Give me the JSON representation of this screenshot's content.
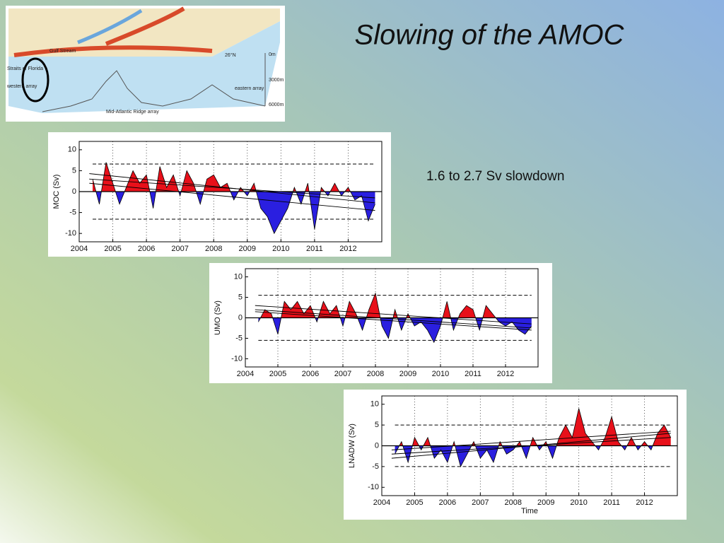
{
  "slide": {
    "title": "Slowing of the AMOC",
    "note": "1.6 to 2.7 Sv slowdown"
  },
  "map": {
    "labels": [
      "Gulf Stream",
      "26°N",
      "0m",
      "3000m",
      "6000m",
      "Straits of Florida",
      "western array",
      "eastern array",
      "Mid-Atlantic Ridge array"
    ]
  },
  "chart_data": [
    {
      "type": "area",
      "ylabel": "MOC  (Sv)",
      "color_above": "#e8101a",
      "color_below": "#2a1fe0",
      "x": [
        2004.4,
        2004.6,
        2004.8,
        2005.0,
        2005.2,
        2005.4,
        2005.6,
        2005.8,
        2006.0,
        2006.2,
        2006.4,
        2006.6,
        2006.8,
        2007.0,
        2007.2,
        2007.4,
        2007.6,
        2007.8,
        2008.0,
        2008.2,
        2008.4,
        2008.6,
        2008.8,
        2009.0,
        2009.2,
        2009.4,
        2009.6,
        2009.8,
        2010.0,
        2010.2,
        2010.4,
        2010.6,
        2010.8,
        2011.0,
        2011.2,
        2011.4,
        2011.6,
        2011.8,
        2012.0,
        2012.2,
        2012.4,
        2012.6,
        2012.8
      ],
      "values": [
        3,
        -3,
        7,
        2,
        -3,
        1,
        5,
        2,
        4,
        -4,
        6,
        1,
        4,
        -1,
        5,
        2,
        -3,
        3,
        4,
        1,
        2,
        -2,
        1,
        -1,
        2,
        -4,
        -6,
        -10,
        -7,
        -4,
        1,
        -3,
        2,
        -9,
        1,
        -1,
        2,
        -1,
        1,
        -2,
        -1,
        -7,
        -3
      ],
      "reference_lines": [
        6.6,
        -6.6
      ],
      "trend_lines": [
        {
          "x": [
            2004.3,
            2012.8
          ],
          "values": [
            4.3,
            -2.7
          ]
        },
        {
          "x": [
            2004.3,
            2012.8
          ],
          "values": [
            3,
            -1.5
          ]
        },
        {
          "x": [
            2004.3,
            2012.8
          ],
          "values": [
            2,
            -4.5
          ]
        }
      ],
      "xlim": [
        2004,
        2013
      ],
      "xticks": [
        2004,
        2005,
        2006,
        2007,
        2008,
        2009,
        2010,
        2011,
        2012
      ],
      "ylim": [
        -12,
        12
      ],
      "yticks": [
        -10,
        -5,
        0,
        5,
        10
      ],
      "grid": true
    },
    {
      "type": "area",
      "ylabel": "UMO  (Sv)",
      "color_above": "#e8101a",
      "color_below": "#2a1fe0",
      "x": [
        2004.4,
        2004.6,
        2004.8,
        2005.0,
        2005.2,
        2005.4,
        2005.6,
        2005.8,
        2006.0,
        2006.2,
        2006.4,
        2006.6,
        2006.8,
        2007.0,
        2007.2,
        2007.4,
        2007.6,
        2007.8,
        2008.0,
        2008.2,
        2008.4,
        2008.6,
        2008.8,
        2009.0,
        2009.2,
        2009.4,
        2009.6,
        2009.8,
        2010.0,
        2010.2,
        2010.4,
        2010.6,
        2010.8,
        2011.0,
        2011.2,
        2011.4,
        2011.6,
        2011.8,
        2012.0,
        2012.2,
        2012.4,
        2012.6,
        2012.8
      ],
      "values": [
        -1,
        2,
        1,
        -4,
        4,
        2,
        4,
        1,
        3,
        -1,
        4,
        1,
        3,
        -2,
        4,
        1,
        -3,
        2,
        6,
        -2,
        -5,
        2,
        -3,
        1,
        -2,
        -1,
        -3,
        -6,
        -2,
        4,
        -3,
        1,
        3,
        2,
        -3,
        3,
        1,
        -1,
        -2,
        -1,
        -3,
        -4,
        -2
      ],
      "reference_lines": [
        5.5,
        -5.5
      ],
      "trend_lines": [
        {
          "x": [
            2004.3,
            2012.8
          ],
          "values": [
            3,
            -1.5
          ]
        },
        {
          "x": [
            2004.3,
            2012.8
          ],
          "values": [
            2,
            -2.5
          ]
        },
        {
          "x": [
            2004.3,
            2012.8
          ],
          "values": [
            1.5,
            -3
          ]
        }
      ],
      "xlim": [
        2004,
        2013
      ],
      "xticks": [
        2004,
        2005,
        2006,
        2007,
        2008,
        2009,
        2010,
        2011,
        2012
      ],
      "ylim": [
        -12,
        12
      ],
      "yticks": [
        -10,
        -5,
        0,
        5,
        10
      ],
      "grid": true
    },
    {
      "type": "area",
      "ylabel": "LNADW  (Sv)",
      "xlabel": "Time",
      "color_above": "#e8101a",
      "color_below": "#2a1fe0",
      "x": [
        2004.4,
        2004.6,
        2004.8,
        2005.0,
        2005.2,
        2005.4,
        2005.6,
        2005.8,
        2006.0,
        2006.2,
        2006.4,
        2006.6,
        2006.8,
        2007.0,
        2007.2,
        2007.4,
        2007.6,
        2007.8,
        2008.0,
        2008.2,
        2008.4,
        2008.6,
        2008.8,
        2009.0,
        2009.2,
        2009.4,
        2009.6,
        2009.8,
        2010.0,
        2010.2,
        2010.4,
        2010.6,
        2010.8,
        2011.0,
        2011.2,
        2011.4,
        2011.6,
        2011.8,
        2012.0,
        2012.2,
        2012.4,
        2012.6,
        2012.8
      ],
      "values": [
        -2,
        1,
        -4,
        2,
        -1,
        2,
        -3,
        -1,
        -4,
        1,
        -5,
        -2,
        1,
        -3,
        -1,
        -4,
        1,
        -2,
        -1,
        1,
        -3,
        2,
        -1,
        1,
        -3,
        2,
        5,
        2,
        9,
        3,
        1,
        -1,
        2,
        7,
        1,
        -1,
        2,
        -1,
        1,
        -1,
        3,
        5,
        2
      ],
      "reference_lines": [
        5,
        -5
      ],
      "trend_lines": [
        {
          "x": [
            2004.3,
            2012.8
          ],
          "values": [
            -3,
            3
          ]
        },
        {
          "x": [
            2004.3,
            2012.8
          ],
          "values": [
            -2,
            2
          ]
        },
        {
          "x": [
            2004.3,
            2012.8
          ],
          "values": [
            -1,
            3.5
          ]
        }
      ],
      "xlim": [
        2004,
        2013
      ],
      "xticks": [
        2004,
        2005,
        2006,
        2007,
        2008,
        2009,
        2010,
        2011,
        2012
      ],
      "ylim": [
        -12,
        12
      ],
      "yticks": [
        -10,
        -5,
        0,
        5,
        10
      ],
      "grid": true
    }
  ]
}
